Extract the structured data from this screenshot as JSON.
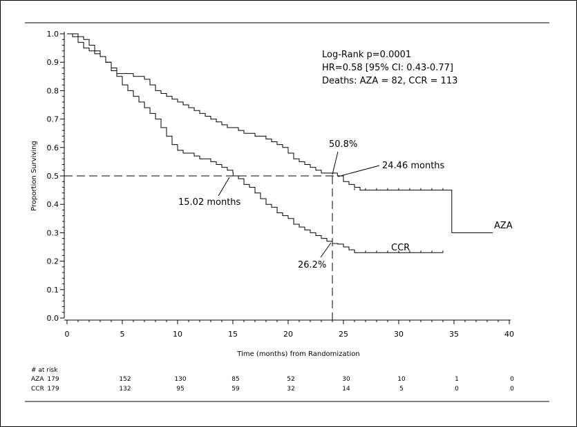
{
  "chart_data": {
    "type": "line",
    "title": "",
    "xlabel": "Time (months) from Randomization",
    "ylabel": "Proportion Surviving",
    "xlim": [
      0,
      40
    ],
    "ylim": [
      0.0,
      1.0
    ],
    "x_ticks": [
      "0",
      "5",
      "10",
      "15",
      "20",
      "25",
      "30",
      "35",
      "40"
    ],
    "y_ticks": [
      "0.0",
      "0.1",
      "0.2",
      "0.3",
      "0.4",
      "0.5",
      "0.6",
      "0.7",
      "0.8",
      "0.9",
      "1.0"
    ],
    "grid": false,
    "stats": {
      "line1": "Log-Rank p=0.0001",
      "line2": "HR=0.58 [95% CI: 0.43-0.77]",
      "line3": "Deaths: AZA = 82, CCR = 113"
    },
    "annotations": {
      "aza_median": "24.46 months",
      "ccr_median": "15.02 months",
      "aza_at24": "50.8%",
      "ccr_at24": "26.2%"
    },
    "reference": {
      "y": 0.5,
      "x": 24
    },
    "series": [
      {
        "name": "AZA",
        "points": [
          [
            0,
            1.0
          ],
          [
            0.5,
            1.0
          ],
          [
            1,
            0.99
          ],
          [
            1.5,
            0.98
          ],
          [
            2,
            0.96
          ],
          [
            2.5,
            0.94
          ],
          [
            3,
            0.92
          ],
          [
            3.5,
            0.9
          ],
          [
            4,
            0.87
          ],
          [
            4.5,
            0.86
          ],
          [
            5,
            0.86
          ],
          [
            6,
            0.85
          ],
          [
            6.5,
            0.85
          ],
          [
            7,
            0.84
          ],
          [
            7.5,
            0.82
          ],
          [
            8,
            0.8
          ],
          [
            8.5,
            0.79
          ],
          [
            9,
            0.78
          ],
          [
            9.5,
            0.77
          ],
          [
            10,
            0.76
          ],
          [
            10.5,
            0.75
          ],
          [
            11,
            0.74
          ],
          [
            11.5,
            0.73
          ],
          [
            12,
            0.72
          ],
          [
            12.5,
            0.71
          ],
          [
            13,
            0.7
          ],
          [
            13.5,
            0.69
          ],
          [
            14,
            0.68
          ],
          [
            14.5,
            0.67
          ],
          [
            15,
            0.67
          ],
          [
            15.5,
            0.66
          ],
          [
            16,
            0.65
          ],
          [
            16.5,
            0.65
          ],
          [
            17,
            0.64
          ],
          [
            17.5,
            0.64
          ],
          [
            18,
            0.63
          ],
          [
            18.5,
            0.62
          ],
          [
            19,
            0.61
          ],
          [
            19.5,
            0.6
          ],
          [
            20,
            0.58
          ],
          [
            20.5,
            0.56
          ],
          [
            21,
            0.55
          ],
          [
            21.5,
            0.54
          ],
          [
            22,
            0.53
          ],
          [
            22.5,
            0.52
          ],
          [
            23,
            0.51
          ],
          [
            24,
            0.51
          ],
          [
            24.46,
            0.5
          ],
          [
            25,
            0.48
          ],
          [
            25.5,
            0.47
          ],
          [
            26,
            0.46
          ],
          [
            26.5,
            0.45
          ],
          [
            27,
            0.45
          ],
          [
            30,
            0.45
          ],
          [
            34,
            0.45
          ],
          [
            34.8,
            0.45
          ],
          [
            34.8,
            0.3
          ],
          [
            38.5,
            0.3
          ]
        ],
        "endLabel": "AZA"
      },
      {
        "name": "CCR",
        "points": [
          [
            0,
            1.0
          ],
          [
            0.5,
            0.99
          ],
          [
            1,
            0.97
          ],
          [
            1.5,
            0.95
          ],
          [
            2,
            0.94
          ],
          [
            2.5,
            0.93
          ],
          [
            3,
            0.92
          ],
          [
            3.5,
            0.9
          ],
          [
            4,
            0.88
          ],
          [
            4.5,
            0.85
          ],
          [
            5,
            0.82
          ],
          [
            5.5,
            0.8
          ],
          [
            6,
            0.78
          ],
          [
            6.5,
            0.76
          ],
          [
            7,
            0.74
          ],
          [
            7.5,
            0.72
          ],
          [
            8,
            0.7
          ],
          [
            8.5,
            0.67
          ],
          [
            9,
            0.64
          ],
          [
            9.5,
            0.61
          ],
          [
            10,
            0.59
          ],
          [
            10.5,
            0.58
          ],
          [
            11,
            0.58
          ],
          [
            11.5,
            0.57
          ],
          [
            12,
            0.56
          ],
          [
            12.5,
            0.56
          ],
          [
            13,
            0.55
          ],
          [
            13.5,
            0.54
          ],
          [
            14,
            0.53
          ],
          [
            14.5,
            0.52
          ],
          [
            15,
            0.51
          ],
          [
            15.02,
            0.5
          ],
          [
            15.5,
            0.49
          ],
          [
            16,
            0.47
          ],
          [
            16.5,
            0.46
          ],
          [
            17,
            0.44
          ],
          [
            17.5,
            0.42
          ],
          [
            18,
            0.4
          ],
          [
            18.5,
            0.39
          ],
          [
            19,
            0.37
          ],
          [
            19.5,
            0.36
          ],
          [
            20,
            0.35
          ],
          [
            20.5,
            0.33
          ],
          [
            21,
            0.32
          ],
          [
            21.5,
            0.31
          ],
          [
            22,
            0.3
          ],
          [
            22.5,
            0.29
          ],
          [
            23,
            0.28
          ],
          [
            23.5,
            0.27
          ],
          [
            24,
            0.262
          ],
          [
            24.5,
            0.26
          ],
          [
            25,
            0.25
          ],
          [
            25.5,
            0.24
          ],
          [
            26,
            0.23
          ],
          [
            27,
            0.23
          ],
          [
            30,
            0.23
          ],
          [
            34,
            0.23
          ]
        ],
        "endLabel": "CCR"
      }
    ]
  },
  "risk_table": {
    "header": "# at risk",
    "rows": [
      {
        "label": "AZA",
        "values": [
          "179",
          "152",
          "130",
          "85",
          "52",
          "30",
          "10",
          "1",
          "0"
        ]
      },
      {
        "label": "CCR",
        "values": [
          "179",
          "132",
          "95",
          "59",
          "32",
          "14",
          "5",
          "0",
          "0"
        ]
      }
    ]
  }
}
